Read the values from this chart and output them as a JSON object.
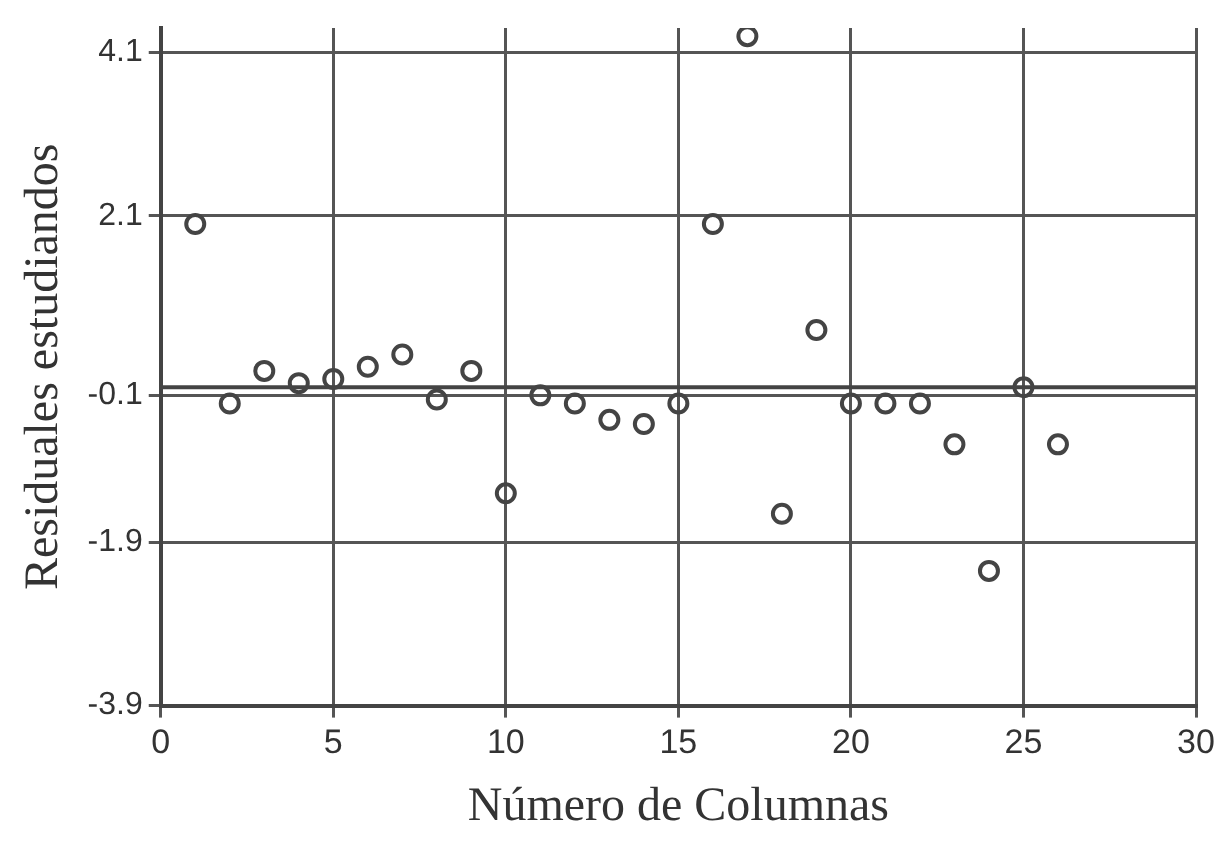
{
  "chart_data": {
    "type": "scatter",
    "xlabel": "Número de Columnas",
    "ylabel": "Residuales estudiandos",
    "x": [
      1,
      2,
      3,
      4,
      5,
      6,
      7,
      8,
      9,
      10,
      11,
      12,
      13,
      14,
      15,
      16,
      17,
      18,
      19,
      20,
      21,
      22,
      23,
      24,
      25,
      26
    ],
    "series": [
      {
        "color": "#444444",
        "values": [
          2.0,
          -0.2,
          0.2,
          0.05,
          0.1,
          0.25,
          0.4,
          -0.15,
          0.2,
          -1.3,
          -0.1,
          -0.2,
          -0.4,
          -0.45,
          -0.2,
          2.0,
          4.3,
          -1.55,
          0.7,
          -0.2,
          -0.2,
          -0.2,
          -0.7,
          -2.25,
          0.0,
          -0.7
        ]
      }
    ],
    "xlim": [
      0,
      30
    ],
    "xticks": [
      0,
      5,
      10,
      15,
      20,
      25,
      30
    ],
    "ylim": [
      -3.9,
      4.4
    ],
    "yticks": [
      -3.9,
      -1.9,
      -0.1,
      2.1,
      4.1
    ],
    "ref_lines": [
      {
        "axis": "y",
        "value": 0,
        "color": "#444444"
      }
    ],
    "grid": true,
    "legend": false,
    "marker": "circle"
  }
}
